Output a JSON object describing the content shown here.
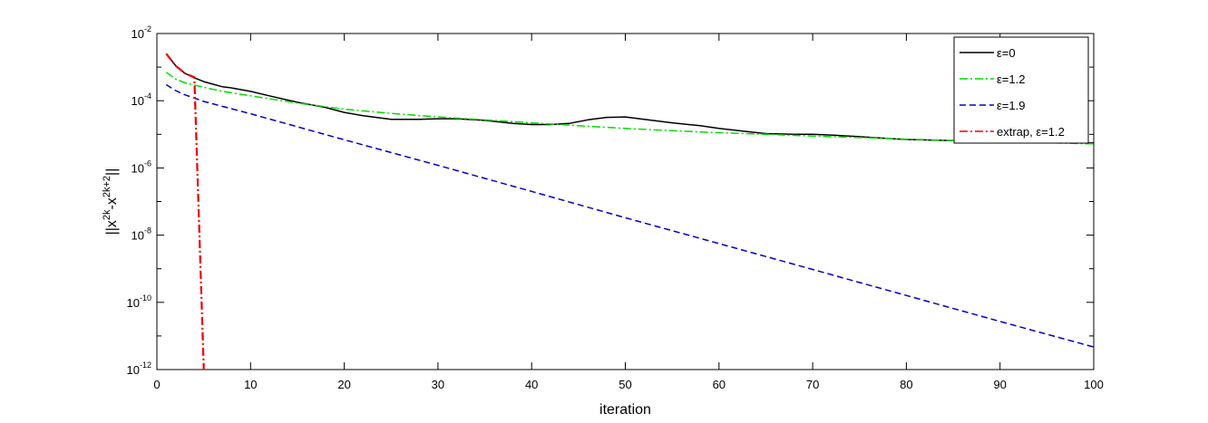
{
  "chart_data": {
    "type": "line",
    "title": "",
    "xlabel": "iteration",
    "ylabel": {
      "base": "||x",
      "sup1": "2k",
      "mid": "-x",
      "sup2": "2k+2",
      "end": "||"
    },
    "xlim": [
      0,
      100
    ],
    "ylim": [
      1e-12,
      0.01
    ],
    "yscale": "log",
    "x_ticks": [
      0,
      10,
      20,
      30,
      40,
      50,
      60,
      70,
      80,
      90,
      100
    ],
    "y_ticks": [
      {
        "value": 0.01,
        "base": "10",
        "exp": "-2"
      },
      {
        "value": 0.0001,
        "base": "10",
        "exp": "-4"
      },
      {
        "value": 1e-06,
        "base": "10",
        "exp": "-6"
      },
      {
        "value": 1e-08,
        "base": "10",
        "exp": "-8"
      },
      {
        "value": 1e-10,
        "base": "10",
        "exp": "-10"
      },
      {
        "value": 1e-12,
        "base": "10",
        "exp": "-12"
      }
    ],
    "grid": false,
    "legend_position": "top-right",
    "series": [
      {
        "name": "ε=0",
        "color": "#000000",
        "dash": "solid",
        "x": [
          1,
          2,
          3,
          4,
          5,
          6,
          7,
          8,
          10,
          12,
          15,
          18,
          20,
          22,
          25,
          28,
          30,
          32,
          35,
          38,
          40,
          42,
          44,
          46,
          48,
          50,
          52,
          55,
          58,
          60,
          62,
          65,
          68,
          70,
          72,
          75,
          78,
          80,
          85,
          88,
          90,
          92,
          95,
          98,
          100
        ],
        "y": [
          0.0025,
          0.0011,
          0.00065,
          0.00048,
          0.00037,
          0.00031,
          0.00026,
          0.00024,
          0.00019,
          0.00014,
          9e-05,
          6.3e-05,
          4.5e-05,
          3.6e-05,
          2.8e-05,
          2.8e-05,
          2.9e-05,
          2.9e-05,
          2.6e-05,
          2.1e-05,
          1.95e-05,
          1.95e-05,
          2.1e-05,
          2.7e-05,
          3.2e-05,
          3.3e-05,
          2.8e-05,
          2.2e-05,
          1.8e-05,
          1.5e-05,
          1.3e-05,
          1.05e-05,
          1e-05,
          1e-05,
          9.5e-06,
          8.5e-06,
          7.5e-06,
          7e-06,
          6.5e-06,
          6.5e-06,
          6.6e-06,
          7e-06,
          6.3e-06,
          5.6e-06,
          5.5e-06
        ]
      },
      {
        "name": "ε=1.2",
        "color": "#00dd00",
        "dash": "dashdot",
        "x": [
          1,
          2,
          3,
          5,
          7,
          10,
          15,
          20,
          25,
          30,
          35,
          40,
          45,
          50,
          55,
          60,
          65,
          70,
          75,
          80,
          85,
          90,
          95,
          100
        ],
        "y": [
          0.0007,
          0.00044,
          0.00034,
          0.00025,
          0.00019,
          0.00014,
          8.5e-05,
          5.6e-05,
          4.2e-05,
          3.3e-05,
          2.7e-05,
          2.2e-05,
          1.8e-05,
          1.5e-05,
          1.28e-05,
          1.12e-05,
          1e-05,
          8.9e-06,
          8e-06,
          7.2e-06,
          6.6e-06,
          6.1e-06,
          5.6e-06,
          5.2e-06
        ]
      },
      {
        "name": "ε=1.9",
        "color": "#0000cc",
        "dash": "dashed",
        "x": [
          1,
          2,
          3,
          5,
          10,
          20,
          30,
          40,
          50,
          60,
          70,
          80,
          90,
          100
        ],
        "y": [
          0.0003,
          0.0002,
          0.00015,
          9.5e-05,
          4.1e-05,
          6.9e-06,
          1.2e-06,
          2e-07,
          3.3e-08,
          5.6e-09,
          9.5e-10,
          1.6e-10,
          2.7e-11,
          4.7e-12
        ]
      },
      {
        "name": "extrap, ε=1.2",
        "color": "#ee0000",
        "dash": "dashdot",
        "x": [
          1,
          2,
          3,
          4,
          5
        ],
        "y": [
          0.0025,
          0.0011,
          0.00065,
          0.0005,
          1e-12
        ]
      }
    ]
  }
}
